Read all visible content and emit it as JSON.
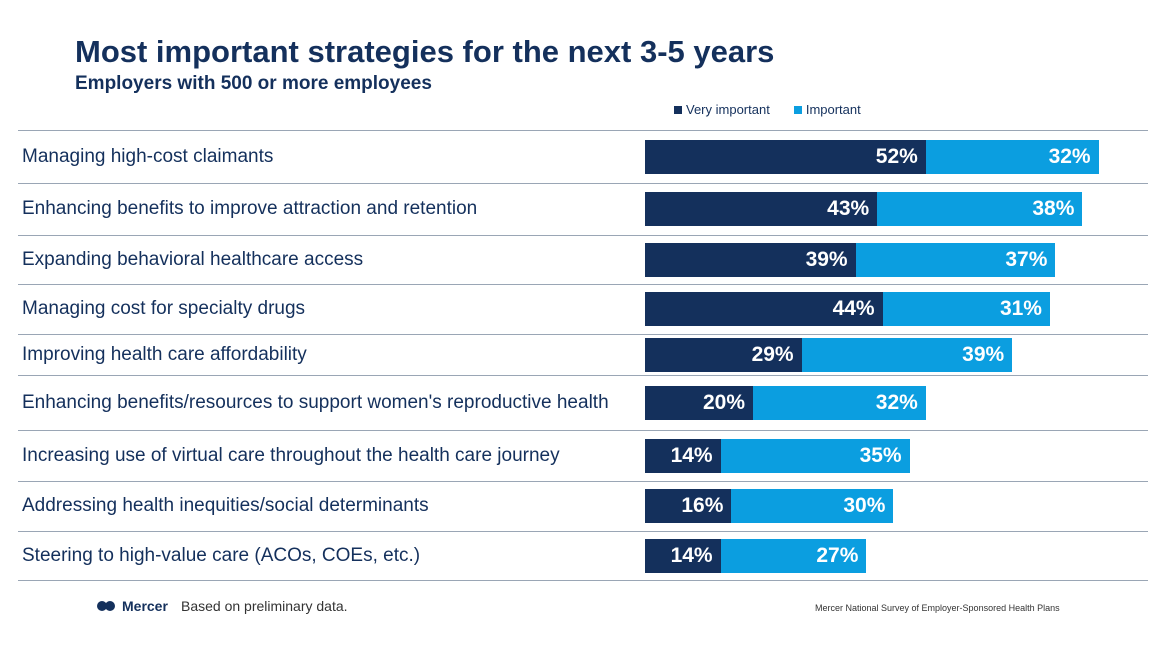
{
  "header": {
    "title": "Most important strategies for the next 3-5 years",
    "subtitle": "Employers with 500 or more employees"
  },
  "colors": {
    "very_important": "#14305c",
    "important": "#0b9ee0"
  },
  "chart_data": {
    "type": "bar",
    "orientation": "horizontal",
    "stacked": true,
    "title": "Most important strategies for the next 3-5 years",
    "subtitle": "Employers with 500 or more employees",
    "legend": [
      "Very important",
      "Important"
    ],
    "legend_position": "top",
    "unit": "%",
    "xlim": [
      0,
      100
    ],
    "categories": [
      "Managing high-cost claimants",
      "Enhancing benefits to improve attraction and retention",
      "Expanding behavioral healthcare access",
      "Managing cost for specialty drugs",
      "Improving health care affordability",
      "Enhancing benefits/resources to support women's reproductive health",
      "Increasing use of virtual care throughout the health care journey",
      "Addressing health inequities/social determinants",
      "Steering to high-value care (ACOs, COEs, etc.)"
    ],
    "series": [
      {
        "name": "Very important",
        "values": [
          52,
          43,
          39,
          44,
          29,
          20,
          14,
          16,
          14
        ]
      },
      {
        "name": "Important",
        "values": [
          32,
          38,
          37,
          31,
          39,
          32,
          35,
          30,
          27
        ]
      }
    ]
  },
  "footer": {
    "brand": "Mercer",
    "note": "Based on preliminary data.",
    "source": "Mercer National Survey of Employer-Sponsored Health Plans"
  }
}
